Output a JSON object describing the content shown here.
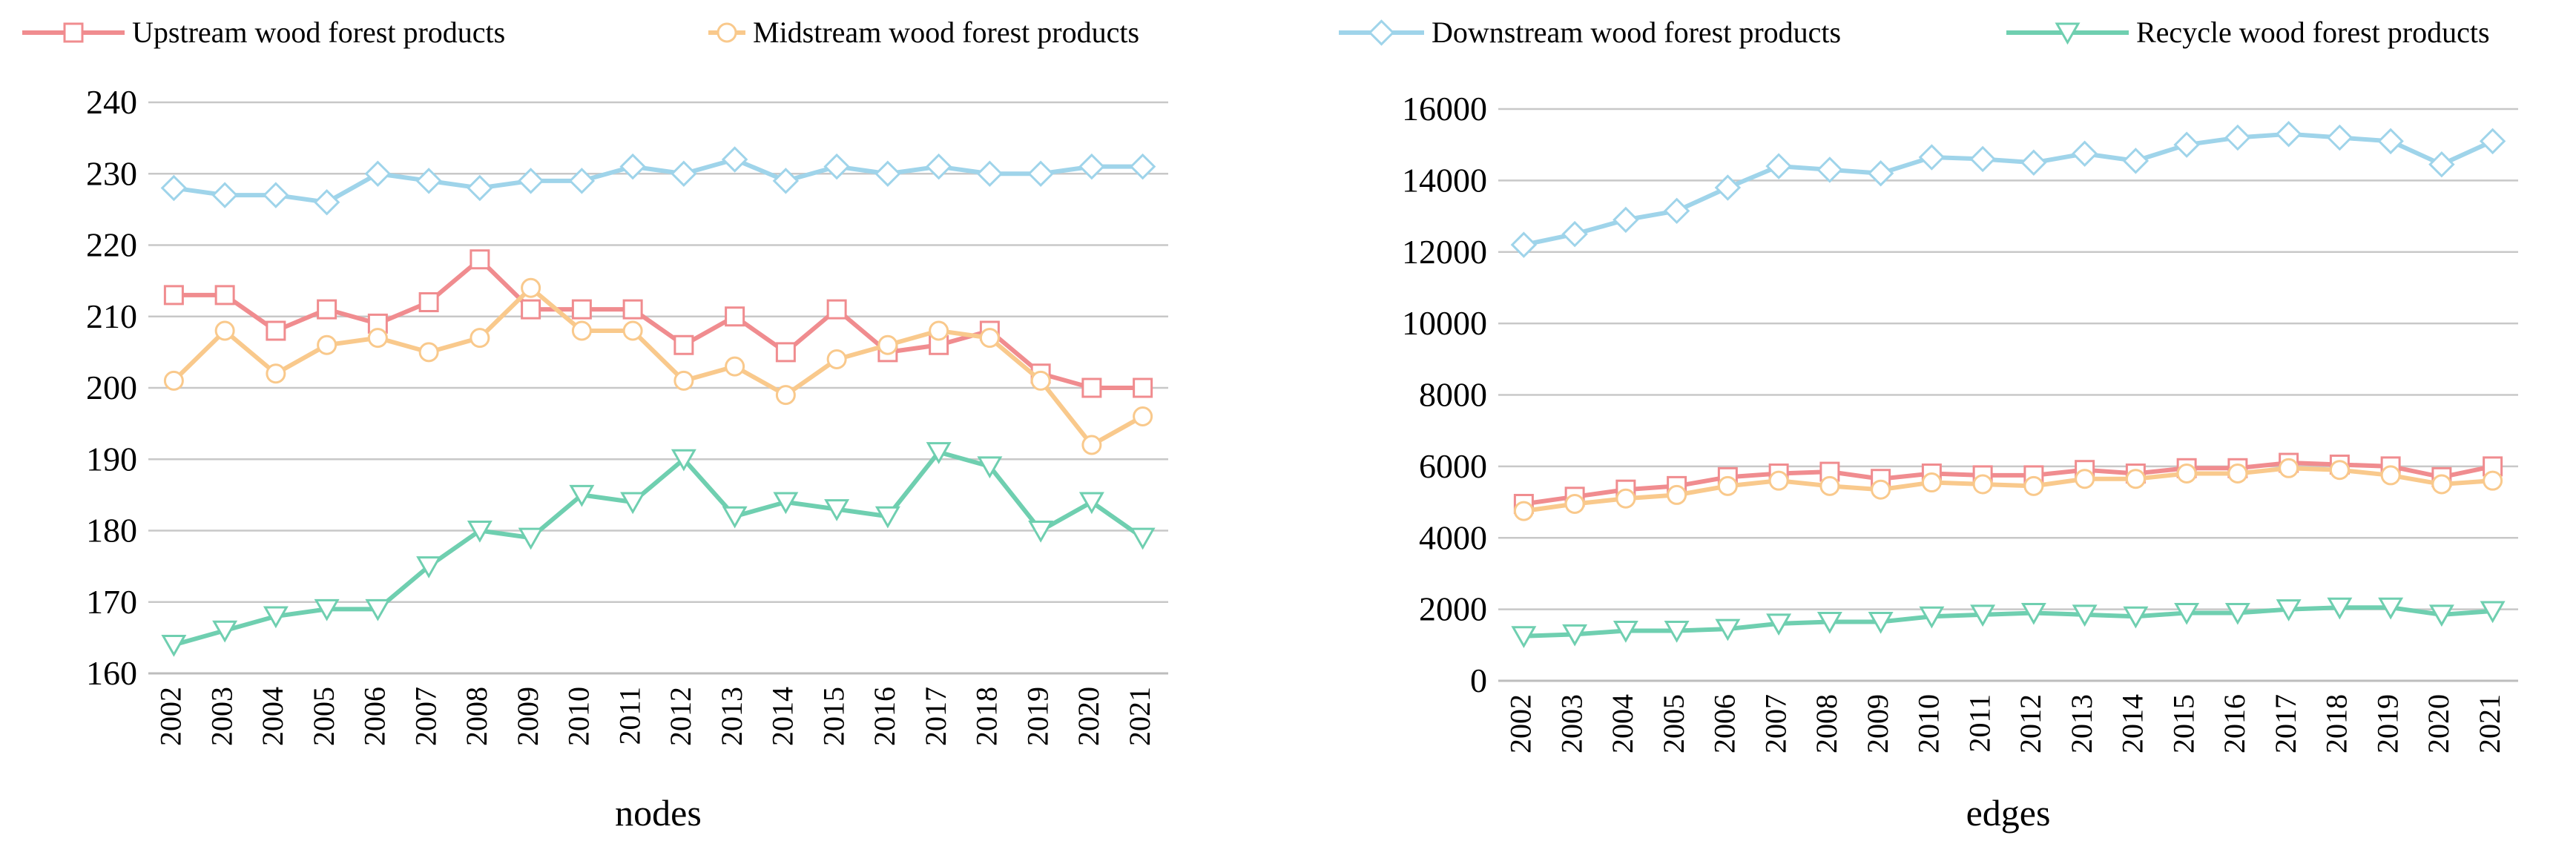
{
  "legend": [
    {
      "name": "Upstream wood forest products",
      "color": "#f08c8f",
      "marker": "square"
    },
    {
      "name": "Midstream wood forest products",
      "color": "#f9c98c",
      "marker": "circle"
    },
    {
      "name": "Downstream wood forest products",
      "color": "#9fd4ea",
      "marker": "diamond"
    },
    {
      "name": "Recycle wood forest products",
      "color": "#6fcfb0",
      "marker": "triangle-down"
    }
  ],
  "chart_data": [
    {
      "type": "line",
      "xlabel": "nodes",
      "ylabel": "",
      "x": [
        "2002",
        "2003",
        "2004",
        "2005",
        "2006",
        "2007",
        "2008",
        "2009",
        "2010",
        "2011",
        "2012",
        "2013",
        "2014",
        "2015",
        "2016",
        "2017",
        "2018",
        "2019",
        "2020",
        "2021"
      ],
      "ylim": [
        160,
        240
      ],
      "yticks": [
        "160",
        "170",
        "180",
        "190",
        "200",
        "210",
        "220",
        "230",
        "240"
      ],
      "grid": "horizontal",
      "legend_position": "top",
      "series": [
        {
          "name": "Upstream wood forest products",
          "color": "#f08c8f",
          "marker": "square",
          "values": [
            213,
            213,
            208,
            211,
            209,
            212,
            218,
            211,
            211,
            211,
            206,
            210,
            205,
            211,
            205,
            206,
            208,
            202,
            200,
            200
          ]
        },
        {
          "name": "Midstream wood forest products",
          "color": "#f9c98c",
          "marker": "circle",
          "values": [
            201,
            208,
            202,
            206,
            207,
            205,
            207,
            214,
            208,
            208,
            201,
            203,
            199,
            204,
            206,
            208,
            207,
            201,
            192,
            196
          ]
        },
        {
          "name": "Downstream wood forest products",
          "color": "#9fd4ea",
          "marker": "diamond",
          "values": [
            228,
            227,
            227,
            226,
            230,
            229,
            228,
            229,
            229,
            231,
            230,
            232,
            229,
            231,
            230,
            231,
            230,
            230,
            231,
            231
          ]
        },
        {
          "name": "Recycle wood forest products",
          "color": "#6fcfb0",
          "marker": "triangle-down",
          "values": [
            164,
            166,
            168,
            169,
            169,
            175,
            180,
            179,
            185,
            184,
            190,
            182,
            184,
            183,
            182,
            191,
            189,
            180,
            184,
            179
          ]
        }
      ]
    },
    {
      "type": "line",
      "xlabel": "edges",
      "ylabel": "",
      "x": [
        "2002",
        "2003",
        "2004",
        "2005",
        "2006",
        "2007",
        "2008",
        "2009",
        "2010",
        "2011",
        "2012",
        "2013",
        "2014",
        "2015",
        "2016",
        "2017",
        "2018",
        "2019",
        "2020",
        "2021"
      ],
      "ylim": [
        0,
        16000
      ],
      "yticks": [
        "0",
        "2000",
        "4000",
        "6000",
        "8000",
        "10000",
        "12000",
        "14000",
        "16000"
      ],
      "grid": "horizontal",
      "legend_position": "top",
      "series": [
        {
          "name": "Upstream wood forest products",
          "color": "#f08c8f",
          "marker": "square",
          "values": [
            4950,
            5150,
            5350,
            5450,
            5700,
            5800,
            5850,
            5650,
            5800,
            5750,
            5750,
            5900,
            5800,
            5950,
            5950,
            6100,
            6050,
            6000,
            5700,
            6000
          ]
        },
        {
          "name": "Midstream wood forest products",
          "color": "#f9c98c",
          "marker": "circle",
          "values": [
            4750,
            4950,
            5100,
            5200,
            5450,
            5600,
            5450,
            5350,
            5550,
            5500,
            5450,
            5650,
            5650,
            5800,
            5800,
            5950,
            5900,
            5750,
            5500,
            5600
          ]
        },
        {
          "name": "Downstream wood forest products",
          "color": "#9fd4ea",
          "marker": "diamond",
          "values": [
            12200,
            12500,
            12900,
            13150,
            13800,
            14400,
            14300,
            14200,
            14650,
            14600,
            14500,
            14750,
            14550,
            15000,
            15200,
            15300,
            15200,
            15100,
            14450,
            15100
          ]
        },
        {
          "name": "Recycle wood forest products",
          "color": "#6fcfb0",
          "marker": "triangle-down",
          "values": [
            1250,
            1300,
            1400,
            1400,
            1450,
            1600,
            1650,
            1650,
            1800,
            1850,
            1900,
            1850,
            1800,
            1900,
            1900,
            2000,
            2050,
            2050,
            1850,
            1950
          ]
        }
      ]
    }
  ]
}
